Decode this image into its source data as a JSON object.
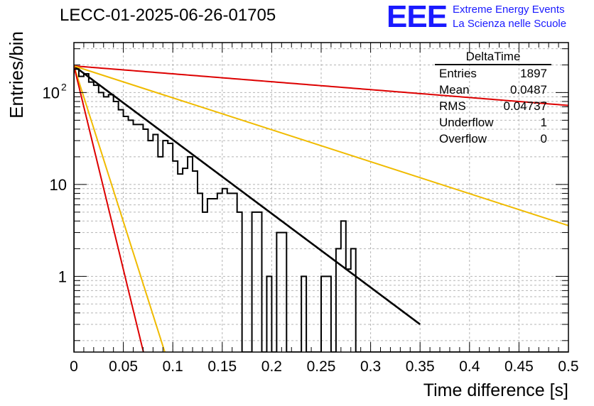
{
  "title": "LECC-01-2025-06-26-01705",
  "logo": {
    "mark": "EEE",
    "line1": "Extreme Energy Events",
    "line2": "La Scienza nelle Scuole",
    "color": "#1a1aff"
  },
  "stats": {
    "name": "DeltaTime",
    "rows": [
      {
        "label": "Entries",
        "value": "1897"
      },
      {
        "label": "Mean",
        "value": "0.0487"
      },
      {
        "label": "RMS",
        "value": "0.04737"
      },
      {
        "label": "Underflow",
        "value": "1"
      },
      {
        "label": "Overflow",
        "value": "0"
      }
    ]
  },
  "chart_data": {
    "type": "line",
    "xlabel": "Time difference [s]",
    "ylabel": "Entries/bin",
    "xlim": [
      0,
      0.5
    ],
    "ylim": [
      0.15,
      350
    ],
    "yscale": "log",
    "grid": true,
    "xticks": [
      "0",
      "0.05",
      "0.1",
      "0.15",
      "0.2",
      "0.25",
      "0.3",
      "0.35",
      "0.4",
      "0.45",
      "0.5"
    ],
    "yticks": [
      {
        "value": 1,
        "label": "1"
      },
      {
        "value": 10,
        "label": "10"
      },
      {
        "value": 100,
        "label": "10",
        "exponent": "2"
      }
    ],
    "histogram": {
      "bin_width": 0.005,
      "color": "#000000",
      "values": [
        180,
        150,
        160,
        130,
        120,
        100,
        90,
        95,
        80,
        65,
        55,
        50,
        45,
        45,
        40,
        30,
        35,
        20,
        30,
        28,
        18,
        13,
        15,
        20,
        14,
        8,
        5,
        7,
        7,
        8,
        9,
        8,
        8,
        5,
        0,
        0,
        5,
        5,
        0,
        1,
        0,
        3,
        3,
        0,
        0,
        0,
        1,
        0,
        0,
        0,
        1,
        1,
        0,
        2,
        4,
        1.2,
        2,
        0,
        0,
        0,
        0,
        0,
        0,
        0,
        0,
        0,
        0,
        0,
        0,
        0,
        0,
        0,
        0,
        0,
        0,
        0,
        0,
        0,
        0,
        0,
        0,
        0,
        0,
        0,
        0,
        0,
        0,
        0,
        0,
        0,
        0,
        0,
        0,
        0,
        0,
        0,
        0,
        0,
        0,
        0
      ]
    },
    "series": [
      {
        "color": "#000000",
        "amplitude": 195,
        "slope": -18.5,
        "x_end": 0.35
      },
      {
        "color": "#dd0000",
        "amplitude": 195,
        "slope": -1.98,
        "x_end": 0.5
      },
      {
        "color": "#f0bb00",
        "amplitude": 195,
        "slope": -8.0,
        "x_end": 0.5
      },
      {
        "color": "#f0bb00",
        "amplitude": 195,
        "slope": -78.0,
        "x_end": 0.5
      },
      {
        "color": "#dd0000",
        "amplitude": 195,
        "slope": -102.0,
        "x_end": 0.5
      }
    ]
  }
}
